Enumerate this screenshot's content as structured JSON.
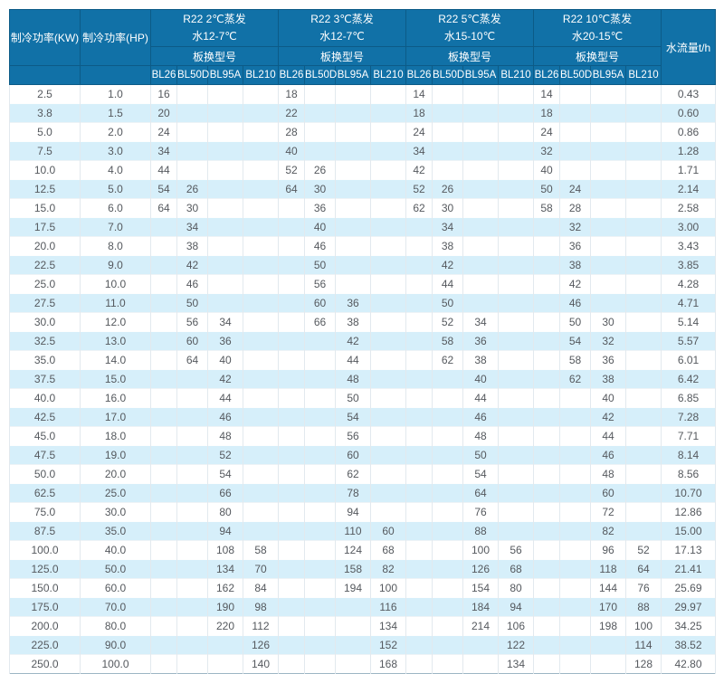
{
  "chart_data": {
    "type": "table",
    "header": {
      "col_kw": "制冷功率(KW)",
      "col_hp": "制冷功率(HP)",
      "col_flow": "水流量t/h",
      "subheader": "板换型号",
      "models": [
        "BL26",
        "BL50D",
        "BL95A",
        "BL210"
      ],
      "groups": [
        {
          "line1": "R22 2℃蒸发",
          "line2": "水12-7℃"
        },
        {
          "line1": "R22 3℃蒸发",
          "line2": "水12-7℃"
        },
        {
          "line1": "R22 5℃蒸发",
          "line2": "水15-10℃"
        },
        {
          "line1": "R22 10℃蒸发",
          "line2": "水20-15℃"
        }
      ]
    },
    "columns": [
      "cell-kw",
      "cell-hp",
      "cell-2c-bl26",
      "cell-2c-bl50d",
      "cell-2c-bl95a",
      "cell-2c-bl210",
      "cell-3c-bl26",
      "cell-3c-bl50d",
      "cell-3c-bl95a",
      "cell-3c-bl210",
      "cell-5c-bl26",
      "cell-5c-bl50d",
      "cell-5c-bl95a",
      "cell-5c-bl210",
      "cell-10c-bl26",
      "cell-10c-bl50d",
      "cell-10c-bl95a",
      "cell-10c-bl210",
      "cell-flow"
    ],
    "rows": [
      [
        "2.5",
        "1.0",
        "16",
        "",
        "",
        "",
        "18",
        "",
        "",
        "",
        "14",
        "",
        "",
        "",
        "14",
        "",
        "",
        "",
        "0.43"
      ],
      [
        "3.8",
        "1.5",
        "20",
        "",
        "",
        "",
        "22",
        "",
        "",
        "",
        "18",
        "",
        "",
        "",
        "18",
        "",
        "",
        "",
        "0.60"
      ],
      [
        "5.0",
        "2.0",
        "24",
        "",
        "",
        "",
        "28",
        "",
        "",
        "",
        "24",
        "",
        "",
        "",
        "24",
        "",
        "",
        "",
        "0.86"
      ],
      [
        "7.5",
        "3.0",
        "34",
        "",
        "",
        "",
        "40",
        "",
        "",
        "",
        "34",
        "",
        "",
        "",
        "32",
        "",
        "",
        "",
        "1.28"
      ],
      [
        "10.0",
        "4.0",
        "44",
        "",
        "",
        "",
        "52",
        "26",
        "",
        "",
        "42",
        "",
        "",
        "",
        "40",
        "",
        "",
        "",
        "1.71"
      ],
      [
        "12.5",
        "5.0",
        "54",
        "26",
        "",
        "",
        "64",
        "30",
        "",
        "",
        "52",
        "26",
        "",
        "",
        "50",
        "24",
        "",
        "",
        "2.14"
      ],
      [
        "15.0",
        "6.0",
        "64",
        "30",
        "",
        "",
        "",
        "36",
        "",
        "",
        "62",
        "30",
        "",
        "",
        "58",
        "28",
        "",
        "",
        "2.58"
      ],
      [
        "17.5",
        "7.0",
        "",
        "34",
        "",
        "",
        "",
        "40",
        "",
        "",
        "",
        "34",
        "",
        "",
        "",
        "32",
        "",
        "",
        "3.00"
      ],
      [
        "20.0",
        "8.0",
        "",
        "38",
        "",
        "",
        "",
        "46",
        "",
        "",
        "",
        "38",
        "",
        "",
        "",
        "36",
        "",
        "",
        "3.43"
      ],
      [
        "22.5",
        "9.0",
        "",
        "42",
        "",
        "",
        "",
        "50",
        "",
        "",
        "",
        "42",
        "",
        "",
        "",
        "38",
        "",
        "",
        "3.85"
      ],
      [
        "25.0",
        "10.0",
        "",
        "46",
        "",
        "",
        "",
        "56",
        "",
        "",
        "",
        "44",
        "",
        "",
        "",
        "42",
        "",
        "",
        "4.28"
      ],
      [
        "27.5",
        "11.0",
        "",
        "50",
        "",
        "",
        "",
        "60",
        "36",
        "",
        "",
        "50",
        "",
        "",
        "",
        "46",
        "",
        "",
        "4.71"
      ],
      [
        "30.0",
        "12.0",
        "",
        "56",
        "34",
        "",
        "",
        "66",
        "38",
        "",
        "",
        "52",
        "34",
        "",
        "",
        "50",
        "30",
        "",
        "5.14"
      ],
      [
        "32.5",
        "13.0",
        "",
        "60",
        "36",
        "",
        "",
        "",
        "42",
        "",
        "",
        "58",
        "36",
        "",
        "",
        "54",
        "32",
        "",
        "5.57"
      ],
      [
        "35.0",
        "14.0",
        "",
        "64",
        "40",
        "",
        "",
        "",
        "44",
        "",
        "",
        "62",
        "38",
        "",
        "",
        "58",
        "36",
        "",
        "6.01"
      ],
      [
        "37.5",
        "15.0",
        "",
        "",
        "42",
        "",
        "",
        "",
        "48",
        "",
        "",
        "",
        "40",
        "",
        "",
        "62",
        "38",
        "",
        "6.42"
      ],
      [
        "40.0",
        "16.0",
        "",
        "",
        "44",
        "",
        "",
        "",
        "50",
        "",
        "",
        "",
        "44",
        "",
        "",
        "",
        "40",
        "",
        "6.85"
      ],
      [
        "42.5",
        "17.0",
        "",
        "",
        "46",
        "",
        "",
        "",
        "54",
        "",
        "",
        "",
        "46",
        "",
        "",
        "",
        "42",
        "",
        "7.28"
      ],
      [
        "45.0",
        "18.0",
        "",
        "",
        "48",
        "",
        "",
        "",
        "56",
        "",
        "",
        "",
        "48",
        "",
        "",
        "",
        "44",
        "",
        "7.71"
      ],
      [
        "47.5",
        "19.0",
        "",
        "",
        "52",
        "",
        "",
        "",
        "60",
        "",
        "",
        "",
        "50",
        "",
        "",
        "",
        "46",
        "",
        "8.14"
      ],
      [
        "50.0",
        "20.0",
        "",
        "",
        "54",
        "",
        "",
        "",
        "62",
        "",
        "",
        "",
        "54",
        "",
        "",
        "",
        "48",
        "",
        "8.56"
      ],
      [
        "62.5",
        "25.0",
        "",
        "",
        "66",
        "",
        "",
        "",
        "78",
        "",
        "",
        "",
        "64",
        "",
        "",
        "",
        "60",
        "",
        "10.70"
      ],
      [
        "75.0",
        "30.0",
        "",
        "",
        "80",
        "",
        "",
        "",
        "94",
        "",
        "",
        "",
        "76",
        "",
        "",
        "",
        "72",
        "",
        "12.86"
      ],
      [
        "87.5",
        "35.0",
        "",
        "",
        "94",
        "",
        "",
        "",
        "110",
        "60",
        "",
        "",
        "88",
        "",
        "",
        "",
        "82",
        "",
        "15.00"
      ],
      [
        "100.0",
        "40.0",
        "",
        "",
        "108",
        "58",
        "",
        "",
        "124",
        "68",
        "",
        "",
        "100",
        "56",
        "",
        "",
        "96",
        "52",
        "17.13"
      ],
      [
        "125.0",
        "50.0",
        "",
        "",
        "134",
        "70",
        "",
        "",
        "158",
        "82",
        "",
        "",
        "126",
        "68",
        "",
        "",
        "118",
        "64",
        "21.41"
      ],
      [
        "150.0",
        "60.0",
        "",
        "",
        "162",
        "84",
        "",
        "",
        "194",
        "100",
        "",
        "",
        "154",
        "80",
        "",
        "",
        "144",
        "76",
        "25.69"
      ],
      [
        "175.0",
        "70.0",
        "",
        "",
        "190",
        "98",
        "",
        "",
        "",
        "116",
        "",
        "",
        "184",
        "94",
        "",
        "",
        "170",
        "88",
        "29.97"
      ],
      [
        "200.0",
        "80.0",
        "",
        "",
        "220",
        "112",
        "",
        "",
        "",
        "134",
        "",
        "",
        "214",
        "106",
        "",
        "",
        "198",
        "100",
        "34.25"
      ],
      [
        "225.0",
        "90.0",
        "",
        "",
        "",
        "126",
        "",
        "",
        "",
        "152",
        "",
        "",
        "",
        "122",
        "",
        "",
        "",
        "114",
        "38.52"
      ],
      [
        "250.0",
        "100.0",
        "",
        "",
        "",
        "140",
        "",
        "",
        "",
        "168",
        "",
        "",
        "",
        "134",
        "",
        "",
        "",
        "128",
        "42.80"
      ]
    ]
  },
  "colors": {
    "header_bg": "#1171a7",
    "header_border": "#0c5b87",
    "stripe": "#d6effa",
    "data_text": "#55595e"
  }
}
